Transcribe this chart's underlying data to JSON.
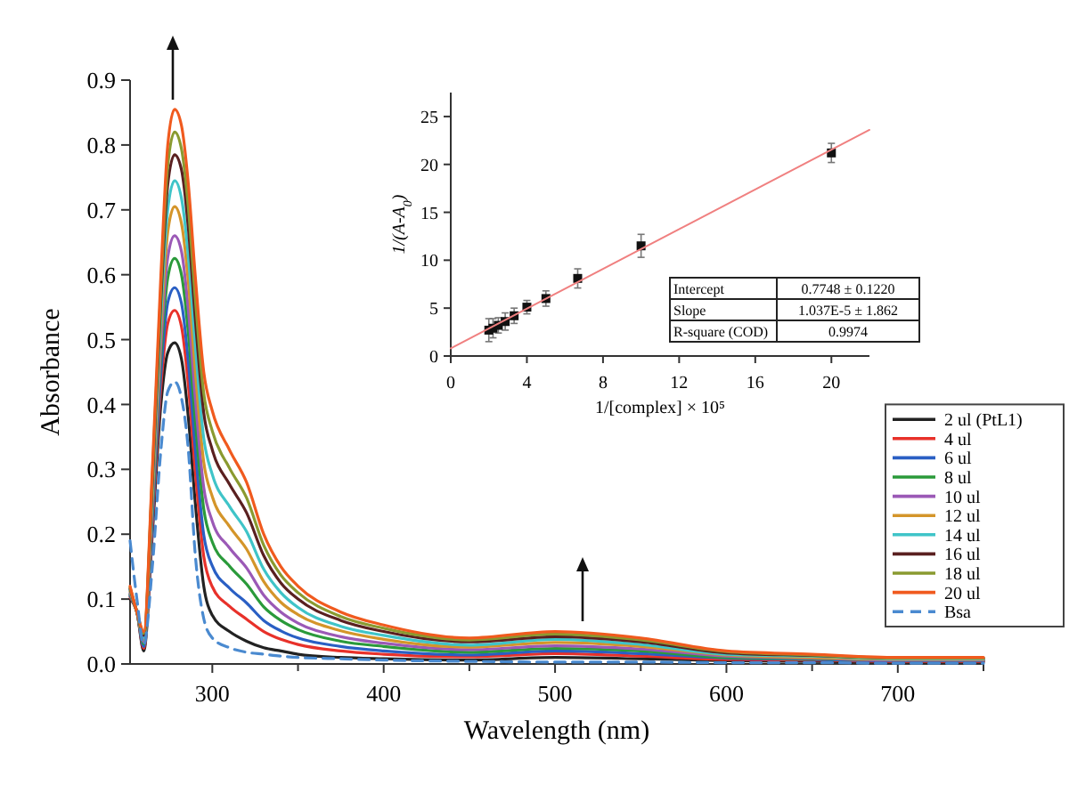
{
  "chart_data": [
    {
      "type": "line",
      "xlabel": "Wavelength (nm)",
      "ylabel": "Absorbance",
      "xlim": [
        252,
        750
      ],
      "ylim": [
        0,
        0.9
      ],
      "xticks": [
        300,
        {
          "value": 350,
          "label": null
        },
        400,
        {
          "value": 450,
          "label": null
        },
        500,
        {
          "value": 550,
          "label": null
        },
        600,
        {
          "value": 650,
          "label": null
        },
        700,
        {
          "value": 750,
          "label": null
        }
      ],
      "yticks": [
        {
          "value": 0,
          "label": "0.0"
        },
        0.1,
        0.2,
        0.3,
        0.4,
        0.5,
        0.6,
        0.7,
        0.8,
        0.9
      ],
      "legend": "bottom right",
      "x": [
        252,
        256,
        260,
        265,
        270,
        274,
        278,
        282,
        286,
        290,
        295,
        300,
        310,
        320,
        330,
        340,
        350,
        375,
        400,
        450,
        500,
        550,
        600,
        650,
        700,
        750
      ],
      "series": [
        {
          "name": "2 ul (PtL1)",
          "color": "#222222",
          "values": [
            0.1,
            0.08,
            0.02,
            0.2,
            0.4,
            0.48,
            0.495,
            0.47,
            0.38,
            0.25,
            0.12,
            0.075,
            0.05,
            0.035,
            0.025,
            0.02,
            0.015,
            0.01,
            0.008,
            0.006,
            0.01,
            0.008,
            0.005,
            0.004,
            0.003,
            0.003
          ]
        },
        {
          "name": "4 ul",
          "color": "#e8312a",
          "values": [
            0.103,
            0.08,
            0.024,
            0.214,
            0.428,
            0.525,
            0.545,
            0.52,
            0.43,
            0.299,
            0.166,
            0.119,
            0.089,
            0.069,
            0.05,
            0.038,
            0.03,
            0.02,
            0.015,
            0.011,
            0.016,
            0.012,
            0.007,
            0.006,
            0.004,
            0.004
          ]
        },
        {
          "name": "6 ul",
          "color": "#2a5fc4",
          "values": [
            0.105,
            0.08,
            0.027,
            0.224,
            0.448,
            0.557,
            0.58,
            0.556,
            0.466,
            0.334,
            0.199,
            0.151,
            0.117,
            0.094,
            0.067,
            0.051,
            0.04,
            0.027,
            0.02,
            0.014,
            0.02,
            0.016,
            0.009,
            0.007,
            0.005,
            0.005
          ]
        },
        {
          "name": "8 ul",
          "color": "#2a9a3a",
          "values": [
            0.107,
            0.08,
            0.031,
            0.236,
            0.472,
            0.595,
            0.625,
            0.6,
            0.51,
            0.376,
            0.239,
            0.188,
            0.151,
            0.123,
            0.088,
            0.067,
            0.053,
            0.035,
            0.027,
            0.018,
            0.024,
            0.02,
            0.01,
            0.008,
            0.006,
            0.006
          ]
        },
        {
          "name": "10 ul",
          "color": "#9b59b6",
          "values": [
            0.109,
            0.08,
            0.034,
            0.246,
            0.492,
            0.627,
            0.66,
            0.636,
            0.546,
            0.411,
            0.272,
            0.22,
            0.179,
            0.148,
            0.106,
            0.08,
            0.063,
            0.042,
            0.032,
            0.022,
            0.028,
            0.023,
            0.012,
            0.009,
            0.006,
            0.006
          ]
        },
        {
          "name": "12 ul",
          "color": "#d4952a",
          "values": [
            0.112,
            0.08,
            0.037,
            0.258,
            0.516,
            0.666,
            0.705,
            0.679,
            0.589,
            0.453,
            0.311,
            0.258,
            0.212,
            0.177,
            0.127,
            0.095,
            0.076,
            0.051,
            0.038,
            0.026,
            0.033,
            0.027,
            0.014,
            0.01,
            0.007,
            0.007
          ]
        },
        {
          "name": "14 ul",
          "color": "#3fc4c8",
          "values": [
            0.114,
            0.08,
            0.041,
            0.269,
            0.538,
            0.701,
            0.745,
            0.718,
            0.628,
            0.492,
            0.348,
            0.292,
            0.243,
            0.204,
            0.146,
            0.11,
            0.087,
            0.058,
            0.044,
            0.029,
            0.038,
            0.03,
            0.015,
            0.012,
            0.008,
            0.008
          ]
        },
        {
          "name": "16 ul",
          "color": "#5a2020",
          "values": [
            0.116,
            0.08,
            0.044,
            0.281,
            0.562,
            0.739,
            0.785,
            0.762,
            0.672,
            0.534,
            0.387,
            0.33,
            0.277,
            0.233,
            0.167,
            0.125,
            0.1,
            0.067,
            0.05,
            0.034,
            0.042,
            0.034,
            0.017,
            0.013,
            0.009,
            0.009
          ]
        },
        {
          "name": "18 ul",
          "color": "#8a9a30",
          "values": [
            0.118,
            0.08,
            0.047,
            0.29,
            0.58,
            0.768,
            0.82,
            0.794,
            0.704,
            0.565,
            0.417,
            0.359,
            0.302,
            0.256,
            0.183,
            0.137,
            0.11,
            0.073,
            0.055,
            0.037,
            0.046,
            0.037,
            0.019,
            0.014,
            0.009,
            0.009
          ]
        },
        {
          "name": "20 ul",
          "color": "#f05a1e",
          "values": [
            0.12,
            0.08,
            0.05,
            0.3,
            0.6,
            0.8,
            0.855,
            0.83,
            0.74,
            0.6,
            0.45,
            0.39,
            0.33,
            0.28,
            0.2,
            0.15,
            0.12,
            0.08,
            0.06,
            0.04,
            0.05,
            0.04,
            0.02,
            0.015,
            0.01,
            0.01
          ]
        },
        {
          "name": "Bsa",
          "color": "#4a8ad0",
          "line_style": "dashed",
          "values": [
            0.19,
            0.1,
            0.03,
            0.15,
            0.33,
            0.42,
            0.435,
            0.41,
            0.33,
            0.17,
            0.07,
            0.04,
            0.025,
            0.018,
            0.015,
            0.012,
            0.01,
            0.008,
            0.006,
            0.004,
            0.003,
            0.003,
            0.002,
            0.002,
            0.001,
            0.001
          ]
        }
      ]
    },
    {
      "type": "scatter",
      "xlabel": "1/[complex] × 10⁵",
      "ylabel": "1/(A-A$_{0}$)",
      "xlim": [
        0,
        22
      ],
      "ylim": [
        0,
        27.5
      ],
      "xticks": [
        0,
        4,
        8,
        12,
        16,
        20
      ],
      "yticks": [
        0,
        5,
        10,
        15,
        20,
        25
      ],
      "annotations": [
        "Intercept",
        "0.7748 ± 0.1220",
        "Slope",
        "1.037E-5 ± 1.862",
        "R-square (COD)",
        "0.9974"
      ],
      "series": [
        {
          "color": "#111111",
          "marker": "square",
          "x": [
            2,
            2.22,
            2.5,
            2.86,
            3.33,
            4,
            5,
            6.67,
            10,
            20
          ],
          "values": [
            2.7,
            2.9,
            3.2,
            3.6,
            4.2,
            5.1,
            6.0,
            8.1,
            11.5,
            21.2
          ],
          "errors": [
            1.2,
            1.0,
            0.8,
            0.9,
            0.8,
            0.7,
            0.8,
            1.0,
            1.2,
            1.0
          ]
        },
        {
          "type": "line",
          "color": "#f08080",
          "x": [
            0,
            22
          ],
          "values": [
            0.8,
            23.6
          ]
        }
      ]
    }
  ]
}
